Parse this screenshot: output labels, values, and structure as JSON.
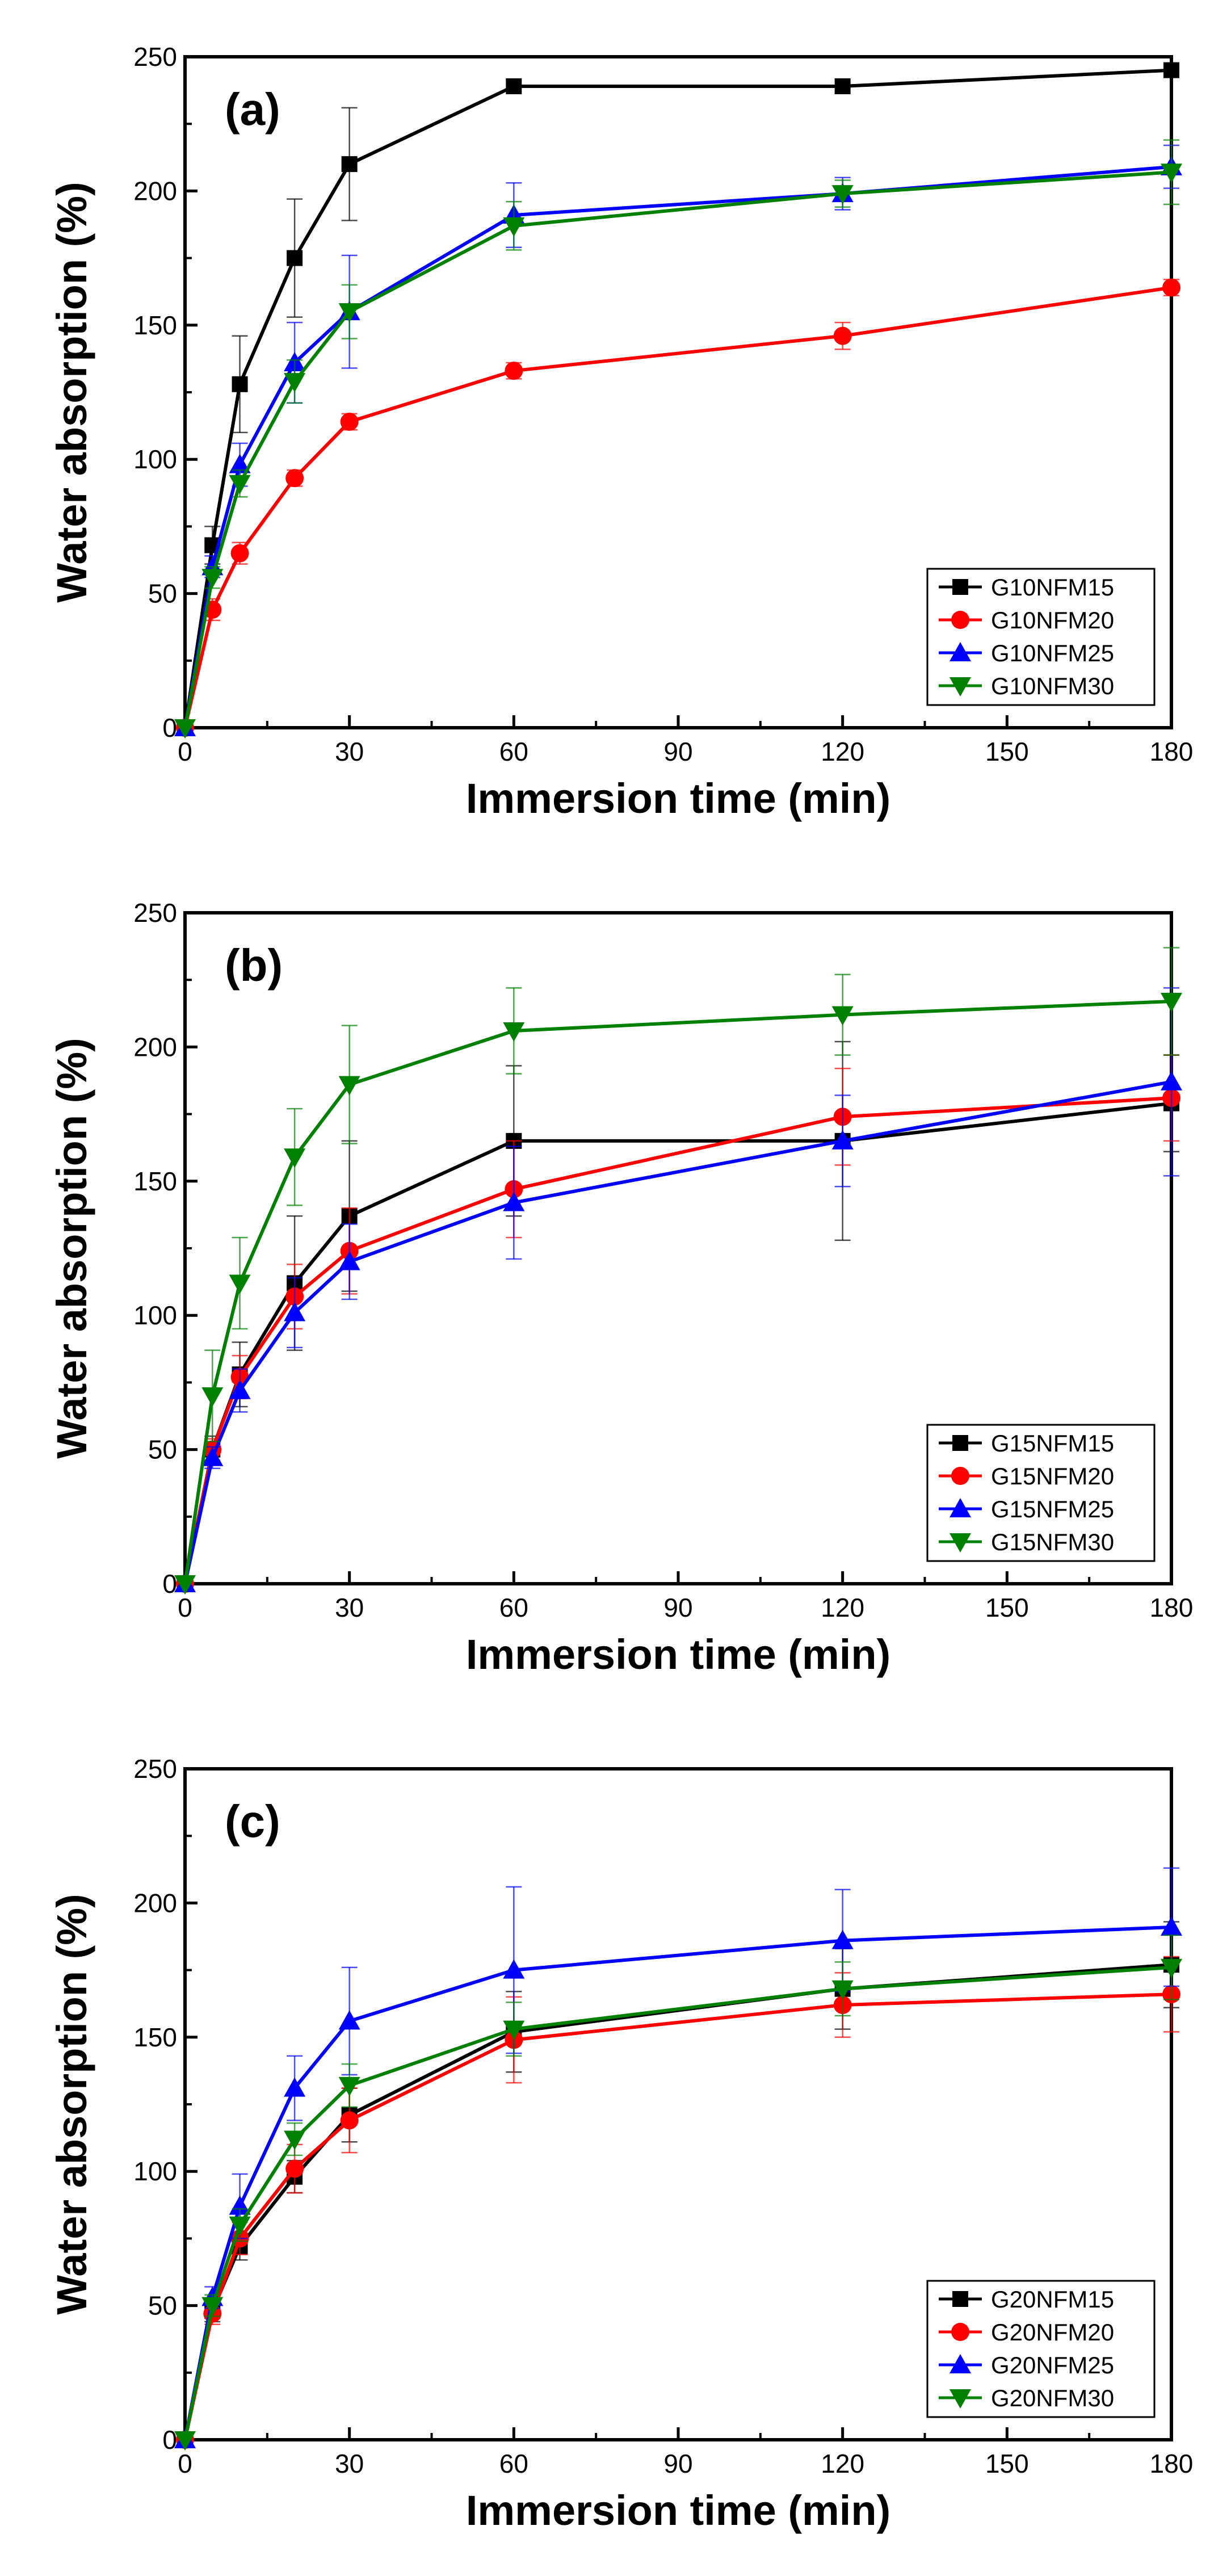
{
  "chart_data": [
    {
      "type": "line",
      "panel_label": "(a)",
      "xlabel": "Immersion time (min)",
      "ylabel": "Water absorption (%)",
      "xlim": [
        0,
        180
      ],
      "ylim": [
        0,
        250
      ],
      "xticks": [
        0,
        30,
        60,
        90,
        120,
        150,
        180
      ],
      "yticks": [
        0,
        50,
        100,
        150,
        200,
        250
      ],
      "legend_position": "bottom-right",
      "x": [
        0,
        5,
        10,
        20,
        30,
        60,
        120,
        180
      ],
      "series": [
        {
          "name": "G10NFM15",
          "color": "#000000",
          "marker": "square",
          "values": [
            0,
            68,
            128,
            175,
            210,
            239,
            239,
            245
          ],
          "errors": [
            0,
            7,
            18,
            22,
            21,
            0,
            0,
            0
          ]
        },
        {
          "name": "G10NFM20",
          "color": "#ff0000",
          "marker": "circle",
          "values": [
            0,
            44,
            65,
            93,
            114,
            133,
            146,
            164
          ],
          "errors": [
            0,
            4,
            4,
            3,
            3,
            3,
            5,
            3
          ]
        },
        {
          "name": "G10NFM25",
          "color": "#0000ff",
          "marker": "triangle-up",
          "values": [
            0,
            60,
            98,
            136,
            155,
            191,
            199,
            209
          ],
          "errors": [
            0,
            4,
            8,
            15,
            21,
            12,
            6,
            8
          ]
        },
        {
          "name": "G10NFM30",
          "color": "#008000",
          "marker": "triangle-down",
          "values": [
            0,
            56,
            91,
            129,
            155,
            187,
            199,
            207
          ],
          "errors": [
            0,
            4,
            5,
            8,
            10,
            9,
            5,
            12
          ]
        }
      ]
    },
    {
      "type": "line",
      "panel_label": "(b)",
      "xlabel": "Immersion time (min)",
      "ylabel": "Water absorption (%)",
      "xlim": [
        0,
        180
      ],
      "ylim": [
        0,
        250
      ],
      "xticks": [
        0,
        30,
        60,
        90,
        120,
        150,
        180
      ],
      "yticks": [
        0,
        50,
        100,
        150,
        200,
        250
      ],
      "legend_position": "bottom-right",
      "x": [
        0,
        5,
        10,
        20,
        30,
        60,
        120,
        180
      ],
      "series": [
        {
          "name": "G15NFM15",
          "color": "#000000",
          "marker": "square",
          "values": [
            0,
            50,
            78,
            112,
            137,
            165,
            165,
            179
          ],
          "errors": [
            0,
            5,
            12,
            25,
            28,
            28,
            37,
            18
          ]
        },
        {
          "name": "G15NFM20",
          "color": "#ff0000",
          "marker": "circle",
          "values": [
            0,
            50,
            77,
            107,
            124,
            147,
            174,
            181
          ],
          "errors": [
            0,
            4,
            8,
            12,
            16,
            18,
            18,
            16
          ]
        },
        {
          "name": "G15NFM25",
          "color": "#0000ff",
          "marker": "triangle-up",
          "values": [
            0,
            47,
            72,
            101,
            120,
            142,
            165,
            187
          ],
          "errors": [
            0,
            4,
            8,
            13,
            14,
            21,
            17,
            35
          ]
        },
        {
          "name": "G15NFM30",
          "color": "#008000",
          "marker": "triangle-down",
          "values": [
            0,
            70,
            112,
            159,
            186,
            206,
            212,
            217
          ],
          "errors": [
            0,
            17,
            17,
            18,
            22,
            16,
            15,
            20
          ]
        }
      ]
    },
    {
      "type": "line",
      "panel_label": "(c)",
      "xlabel": "Immersion time (min)",
      "ylabel": "Water absorption (%)",
      "xlim": [
        0,
        180
      ],
      "ylim": [
        0,
        250
      ],
      "xticks": [
        0,
        30,
        60,
        90,
        120,
        150,
        180
      ],
      "yticks": [
        0,
        50,
        100,
        150,
        200,
        250
      ],
      "legend_position": "bottom-right",
      "x": [
        0,
        5,
        10,
        20,
        30,
        60,
        120,
        180
      ],
      "series": [
        {
          "name": "G20NFM15",
          "color": "#000000",
          "marker": "square",
          "values": [
            0,
            48,
            72,
            98,
            121,
            152,
            168,
            177
          ],
          "errors": [
            0,
            4,
            5,
            6,
            10,
            15,
            15,
            16
          ]
        },
        {
          "name": "G20NFM20",
          "color": "#ff0000",
          "marker": "circle",
          "values": [
            0,
            47,
            75,
            101,
            119,
            149,
            162,
            166
          ],
          "errors": [
            0,
            4,
            6,
            9,
            12,
            16,
            12,
            14
          ]
        },
        {
          "name": "G20NFM25",
          "color": "#0000ff",
          "marker": "triangle-up",
          "values": [
            0,
            53,
            87,
            131,
            156,
            175,
            186,
            191
          ],
          "errors": [
            0,
            4,
            12,
            12,
            20,
            31,
            19,
            22
          ]
        },
        {
          "name": "G20NFM30",
          "color": "#008000",
          "marker": "triangle-down",
          "values": [
            0,
            50,
            80,
            112,
            132,
            153,
            168,
            176
          ],
          "errors": [
            0,
            4,
            6,
            6,
            8,
            10,
            10,
            12
          ]
        }
      ]
    }
  ]
}
